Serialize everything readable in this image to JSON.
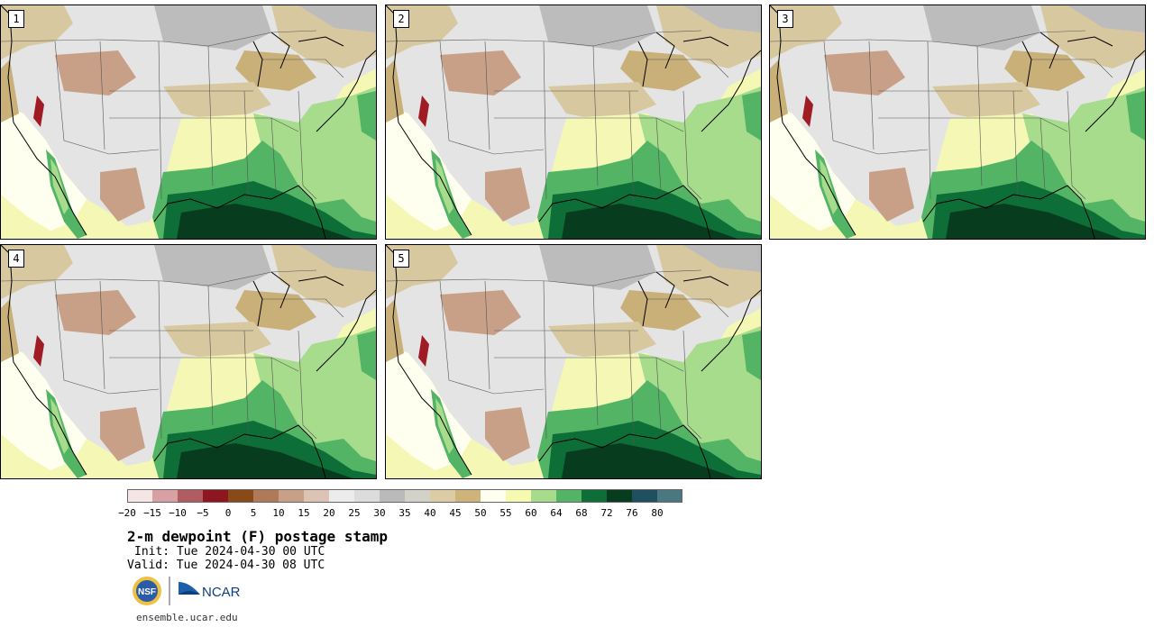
{
  "panels": [
    {
      "label": "1"
    },
    {
      "label": "2"
    },
    {
      "label": "3"
    },
    {
      "label": "4"
    },
    {
      "label": "5"
    }
  ],
  "colorbar": {
    "colors": [
      "#f5e6e6",
      "#d8a0a2",
      "#b05c60",
      "#8e1620",
      "#8a4a18",
      "#b07a58",
      "#c8a088",
      "#dcc4b4",
      "#ececec",
      "#dcdcdc",
      "#bababa",
      "#d2d2c8",
      "#dccca4",
      "#ceb47a",
      "#fffff0",
      "#f6fab0",
      "#a6dc8c",
      "#52b464",
      "#0e6e38",
      "#083c1e",
      "#1e5060",
      "#4a7880"
    ],
    "tick_labels": [
      "−20",
      "−15",
      "−10",
      "−5",
      "0",
      "5",
      "10",
      "15",
      "20",
      "25",
      "30",
      "35",
      "40",
      "45",
      "50",
      "55",
      "60",
      "64",
      "68",
      "72",
      "76",
      "80"
    ]
  },
  "title": "2-m dewpoint (F) postage stamp",
  "init_line": "Init: Tue 2024-04-30 00 UTC",
  "valid_line": "Valid: Tue 2024-04-30 08 UTC",
  "logos": {
    "nsf": "NSF",
    "ncar": "NCAR"
  },
  "footer_url": "ensemble.ucar.edu"
}
